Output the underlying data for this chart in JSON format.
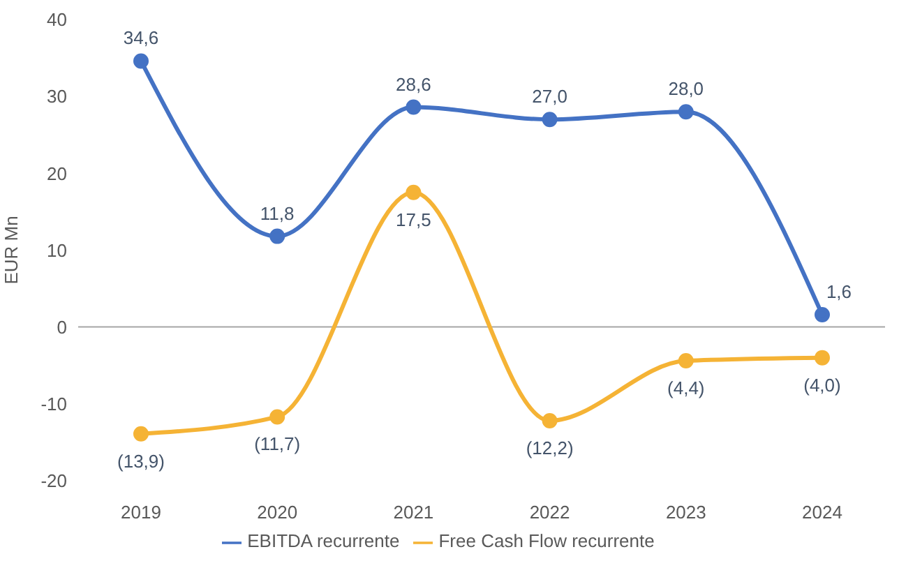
{
  "chart_data": {
    "type": "line",
    "ylabel": "EUR Mn",
    "categories": [
      "2019",
      "2020",
      "2021",
      "2022",
      "2023",
      "2024"
    ],
    "series": [
      {
        "name": "EBITDA recurrente",
        "color": "#4472c4",
        "values": [
          34.6,
          11.8,
          28.6,
          27.0,
          28.0,
          1.6
        ],
        "value_labels": [
          "34,6",
          "11,8",
          "28,6",
          "27,0",
          "28,0",
          "1,6"
        ]
      },
      {
        "name": "Free Cash Flow recurrente",
        "color": "#f5b335",
        "values": [
          -13.9,
          -11.7,
          17.5,
          -12.2,
          -4.4,
          -4.0
        ],
        "value_labels": [
          "(13,9)",
          "(11,7)",
          "17,5",
          "(12,2)",
          "(4,4)",
          "(4,0)"
        ]
      }
    ],
    "ylim": [
      -20,
      40
    ],
    "yticks": [
      -20,
      -10,
      0,
      10,
      20,
      30,
      40
    ],
    "ref_lines": [
      {
        "axis": "y",
        "value": 0,
        "color": "#a6a6a6"
      }
    ],
    "grid": false,
    "legend": "bottom",
    "marker": "circle",
    "line_style": "solid"
  }
}
